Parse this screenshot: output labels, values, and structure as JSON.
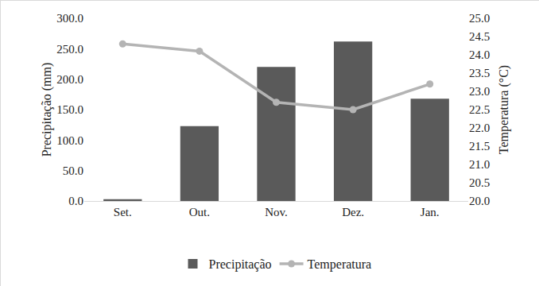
{
  "chart_data": {
    "type": "bar",
    "categories": [
      "Set.",
      "Out.",
      "Nov.",
      "Dez.",
      "Jan."
    ],
    "y_label": "Precipitação (mm)",
    "y2_label": "Temperatura (°C)",
    "series": [
      {
        "name": "Precipitação",
        "type": "bar",
        "color": "#5a5a5a",
        "values": [
          3,
          123,
          220,
          262,
          168
        ]
      },
      {
        "name": "Temperatura",
        "type": "line",
        "axis": "y2",
        "color": "#b4b4b4",
        "marker": "circle",
        "values": [
          24.3,
          24.1,
          22.7,
          22.5,
          23.2
        ]
      }
    ],
    "ylim": [
      0,
      300
    ],
    "yticks": [
      {
        "value": 0,
        "label": "0.0"
      },
      {
        "value": 50,
        "label": "50.0"
      },
      {
        "value": 100,
        "label": "100.0"
      },
      {
        "value": 150,
        "label": "150.0"
      },
      {
        "value": 200,
        "label": "200.0"
      },
      {
        "value": 250,
        "label": "250.0"
      },
      {
        "value": 300,
        "label": "300.0"
      }
    ],
    "y2lim": [
      20,
      25
    ],
    "y2ticks": [
      {
        "value": 20,
        "label": "20.0"
      },
      {
        "value": 20.5,
        "label": "20.5"
      },
      {
        "value": 21,
        "label": "21.0"
      },
      {
        "value": 21.5,
        "label": "21.5"
      },
      {
        "value": 22,
        "label": "22.0"
      },
      {
        "value": 22.5,
        "label": "22.5"
      },
      {
        "value": 23,
        "label": "23.0"
      },
      {
        "value": 23.5,
        "label": "23.5"
      },
      {
        "value": 24,
        "label": "24.0"
      },
      {
        "value": 24.5,
        "label": "24.5"
      },
      {
        "value": 25,
        "label": "25.0"
      }
    ],
    "grid": false,
    "legend": "bottom"
  }
}
